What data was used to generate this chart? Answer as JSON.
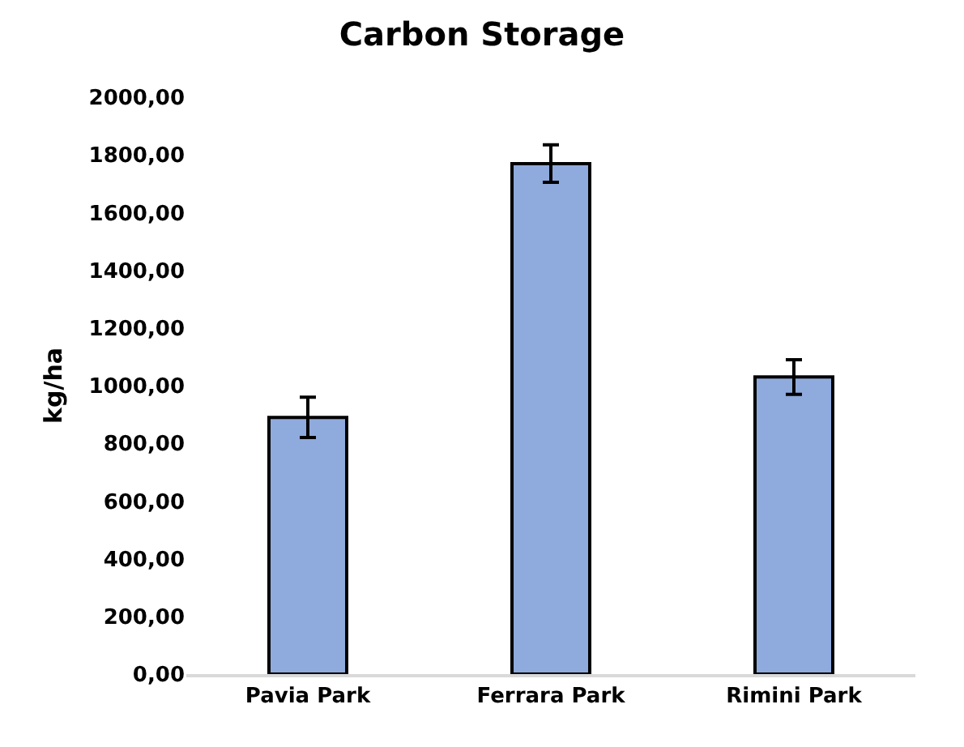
{
  "chart_data": {
    "type": "bar",
    "title": "Carbon Storage",
    "ylabel": "kg/ha",
    "categories": [
      "Pavia Park",
      "Ferrara Park",
      "Rimini Park"
    ],
    "values": [
      890,
      1770,
      1030
    ],
    "errors": [
      70,
      65,
      60
    ],
    "color": "#8faadc",
    "ylim": [
      0,
      2000
    ],
    "yticks": [
      {
        "value": 0,
        "label": "0,00"
      },
      {
        "value": 200,
        "label": "200,00"
      },
      {
        "value": 400,
        "label": "400,00"
      },
      {
        "value": 600,
        "label": "600,00"
      },
      {
        "value": 800,
        "label": "800,00"
      },
      {
        "value": 1000,
        "label": "1000,00"
      },
      {
        "value": 1200,
        "label": "1200,00"
      },
      {
        "value": 1400,
        "label": "1400,00"
      },
      {
        "value": 1600,
        "label": "1600,00"
      },
      {
        "value": 1800,
        "label": "1800,00"
      },
      {
        "value": 2000,
        "label": "2000,00"
      }
    ],
    "grid": false,
    "legend": false
  }
}
